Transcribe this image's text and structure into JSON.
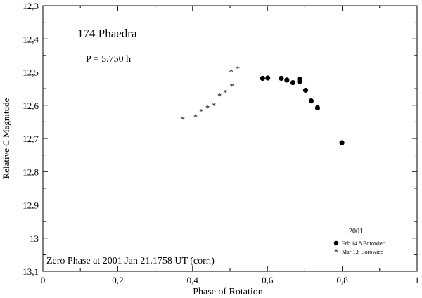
{
  "chart_data": {
    "type": "scatter",
    "title": "174 Phaedra",
    "subtitle": "P = 5.750 h",
    "annotation": "Zero Phase at 2001 Jan 21.1758 UT (corr.)",
    "xlabel": "Phase of Rotation",
    "ylabel": "Relative C Magnitude",
    "xlim": [
      0,
      1
    ],
    "ylim": [
      13.1,
      12.3
    ],
    "y_inverted": true,
    "x_ticks": [
      0,
      0.2,
      0.4,
      0.6,
      0.8,
      1
    ],
    "x_tick_labels": [
      "0",
      "0,2",
      "0,4",
      "0,6",
      "0,8",
      "1"
    ],
    "y_ticks": [
      12.3,
      12.4,
      12.5,
      12.6,
      12.7,
      12.8,
      12.9,
      13.0,
      13.1
    ],
    "y_tick_labels": [
      "12,3",
      "12,4",
      "12,5",
      "12,6",
      "12,7",
      "12,8",
      "12,9",
      "13",
      "13,1"
    ],
    "grid": false,
    "legend": {
      "title": "2001",
      "position": "bottom-right",
      "entries": [
        "Feb 14.8 Borowiec",
        "Mar 1.8 Borowiec"
      ]
    },
    "series": [
      {
        "name": "Feb 14.8 Borowiec",
        "marker": "circle",
        "points": [
          [
            0.587,
            12.519
          ],
          [
            0.601,
            12.518
          ],
          [
            0.637,
            12.519
          ],
          [
            0.652,
            12.524
          ],
          [
            0.668,
            12.532
          ],
          [
            0.686,
            12.521
          ],
          [
            0.686,
            12.529
          ],
          [
            0.702,
            12.555
          ],
          [
            0.717,
            12.587
          ],
          [
            0.734,
            12.608
          ],
          [
            0.799,
            12.713
          ]
        ]
      },
      {
        "name": "Mar 1.8 Borowiec",
        "marker": "star",
        "points": [
          [
            0.374,
            12.64
          ],
          [
            0.408,
            12.632
          ],
          [
            0.423,
            12.616
          ],
          [
            0.44,
            12.606
          ],
          [
            0.457,
            12.598
          ],
          [
            0.472,
            12.57
          ],
          [
            0.487,
            12.559
          ],
          [
            0.503,
            12.497
          ],
          [
            0.505,
            12.54
          ],
          [
            0.521,
            12.487
          ]
        ]
      }
    ]
  }
}
